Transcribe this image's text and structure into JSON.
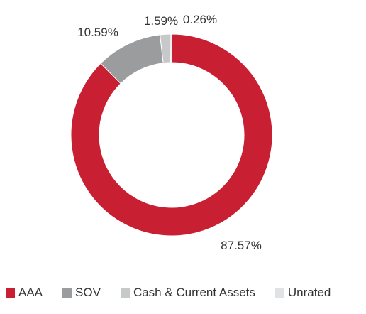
{
  "chart_data": {
    "type": "pie",
    "donut": true,
    "title": "",
    "slices": [
      {
        "name": "AAA",
        "value": 87.57,
        "label": "87.57%",
        "color": "#c82032"
      },
      {
        "name": "SOV",
        "value": 10.59,
        "label": "10.59%",
        "color": "#9a9c9e"
      },
      {
        "name": "Cash & Current Assets",
        "value": 1.59,
        "label": "1.59%",
        "color": "#c7c8ca"
      },
      {
        "name": "Unrated",
        "value": 0.26,
        "label": "0.26%",
        "color": "#e1e2e3"
      }
    ],
    "legend_position": "bottom"
  }
}
